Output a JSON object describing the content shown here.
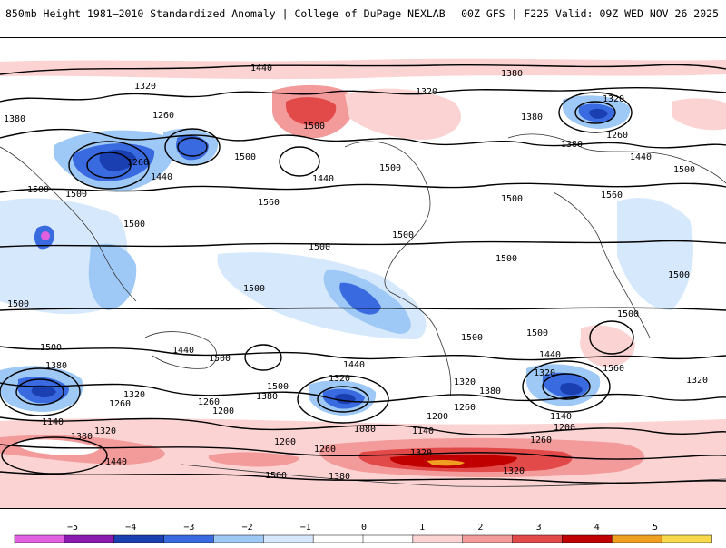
{
  "header": {
    "title_left": "850mb Height 1981–2010 Standardized Anomaly | College of DuPage NEXLAB",
    "title_right": "00Z GFS | F225 Valid: 09Z WED NOV 26 2025"
  },
  "legend": {
    "ticks": [
      "−5",
      "−4",
      "−3",
      "−2",
      "−1",
      "0",
      "1",
      "2",
      "3",
      "4",
      "5"
    ],
    "colors": [
      "#e060e0",
      "#8a1ab0",
      "#1a3fb0",
      "#3a6ae0",
      "#9ec8f5",
      "#d6e8fb",
      "#ffffff",
      "#ffffff",
      "#fbd3d3",
      "#f39a9a",
      "#e24a4a",
      "#c00000",
      "#f0a020",
      "#f7d84a"
    ]
  },
  "contour_labels": [
    "1440",
    "1380",
    "1320",
    "1500",
    "1260",
    "1380",
    "1320",
    "1380",
    "1260",
    "1560",
    "1500",
    "1440",
    "1440",
    "1500",
    "1500",
    "1320",
    "1380",
    "1260",
    "1500",
    "1500",
    "1440",
    "1500",
    "1560",
    "1500",
    "1500",
    "1500",
    "1500",
    "1500",
    "1500",
    "1500",
    "1500",
    "1500",
    "1500",
    "1500",
    "1440",
    "1500",
    "1380",
    "1320",
    "1260",
    "1140",
    "1320",
    "1380",
    "1440",
    "1320",
    "1260",
    "1200",
    "1200",
    "1380",
    "1440",
    "1500",
    "1320",
    "1080",
    "1140",
    "1200",
    "1260",
    "1260",
    "1320",
    "1380",
    "1320",
    "1140",
    "1200",
    "1260",
    "1380",
    "1320",
    "1440",
    "1560",
    "1320",
    "1500"
  ]
}
